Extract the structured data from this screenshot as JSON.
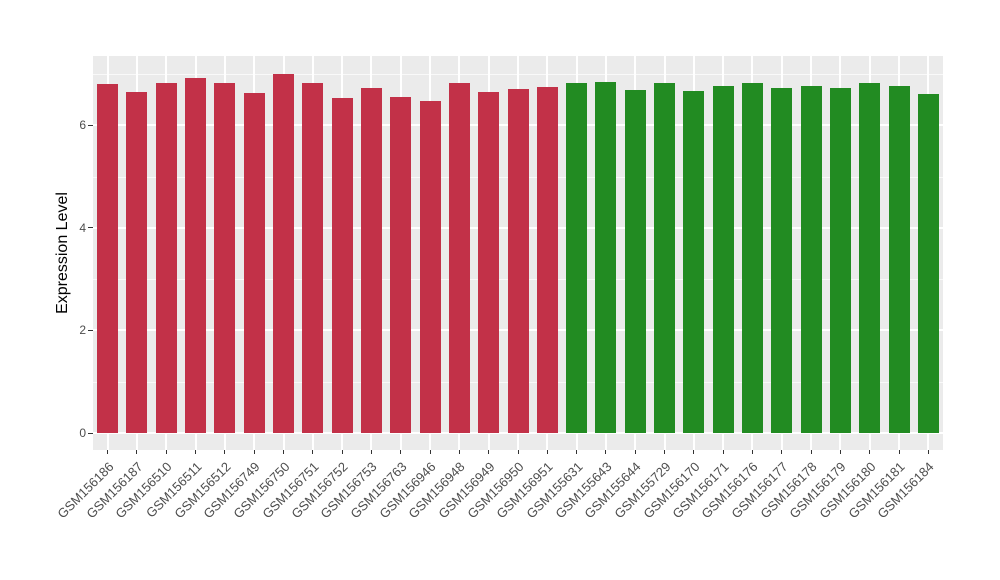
{
  "figure": {
    "y_axis_title": "Expression Level",
    "colors": {
      "panel_background": "#EBEBEB",
      "grid": "#FFFFFF",
      "tick": "#333333",
      "axis_text": "#4D4D4D",
      "axis_title": "#000000",
      "group1_fill": "#C23148",
      "group2_fill": "#228B22"
    }
  },
  "chart_data": {
    "type": "bar",
    "title": "",
    "xlabel": "",
    "ylabel": "Expression Level",
    "ylim": [
      0,
      7.35
    ],
    "yticks": [
      0,
      2,
      4,
      6
    ],
    "yticks_minor": [
      1,
      3,
      5,
      7
    ],
    "grid": true,
    "legend": false,
    "categories": [
      "GSM156186",
      "GSM156187",
      "GSM156510",
      "GSM156511",
      "GSM156512",
      "GSM156749",
      "GSM156750",
      "GSM156751",
      "GSM156752",
      "GSM156753",
      "GSM156763",
      "GSM156946",
      "GSM156948",
      "GSM156949",
      "GSM156950",
      "GSM156951",
      "GSM155631",
      "GSM155643",
      "GSM155644",
      "GSM155729",
      "GSM156170",
      "GSM156171",
      "GSM156176",
      "GSM156177",
      "GSM156178",
      "GSM156179",
      "GSM156180",
      "GSM156181",
      "GSM156184"
    ],
    "values": [
      6.81,
      6.64,
      6.83,
      6.92,
      6.82,
      6.63,
      6.99,
      6.83,
      6.53,
      6.72,
      6.56,
      6.48,
      6.83,
      6.64,
      6.71,
      6.75,
      6.82,
      6.85,
      6.69,
      6.82,
      6.67,
      6.76,
      6.83,
      6.72,
      6.76,
      6.72,
      6.82,
      6.77,
      6.6
    ],
    "groups": [
      "group1",
      "group1",
      "group1",
      "group1",
      "group1",
      "group1",
      "group1",
      "group1",
      "group1",
      "group1",
      "group1",
      "group1",
      "group1",
      "group1",
      "group1",
      "group1",
      "group2",
      "group2",
      "group2",
      "group2",
      "group2",
      "group2",
      "group2",
      "group2",
      "group2",
      "group2",
      "group2",
      "group2",
      "group2"
    ],
    "group_colors": {
      "group1": "#C23148",
      "group2": "#228B22"
    }
  }
}
